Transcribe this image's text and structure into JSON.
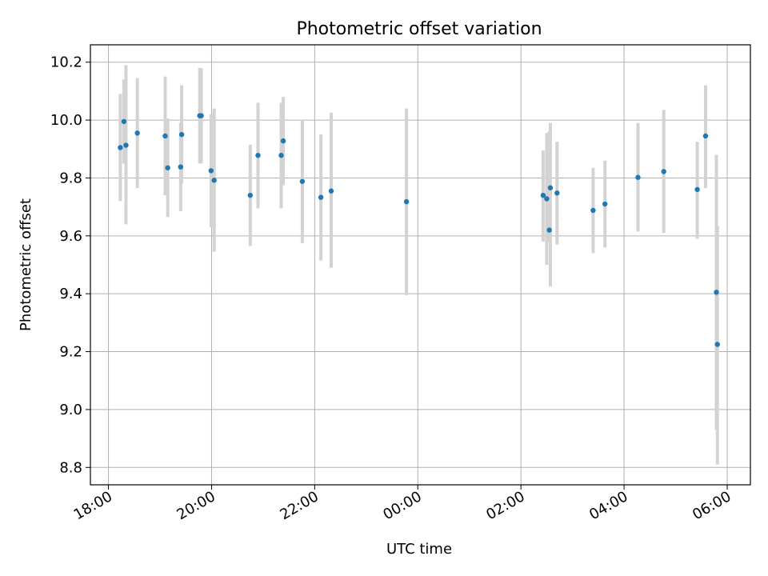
{
  "chart_data": {
    "type": "scatter",
    "title": "Photometric offset variation",
    "xlabel": "UTC time",
    "ylabel": "Photometric offset",
    "grid": true,
    "x_unit": "hours since 18:00 UTC",
    "xlim": [
      -0.35,
      12.45
    ],
    "ylim": [
      8.74,
      10.26
    ],
    "xticks": [
      {
        "value": 0,
        "label": "18:00"
      },
      {
        "value": 2,
        "label": "20:00"
      },
      {
        "value": 4,
        "label": "22:00"
      },
      {
        "value": 6,
        "label": "00:00"
      },
      {
        "value": 8,
        "label": "02:00"
      },
      {
        "value": 10,
        "label": "04:00"
      },
      {
        "value": 12,
        "label": "06:00"
      }
    ],
    "yticks": [
      {
        "value": 8.8,
        "label": "8.8"
      },
      {
        "value": 9.0,
        "label": "9.0"
      },
      {
        "value": 9.2,
        "label": "9.2"
      },
      {
        "value": 9.4,
        "label": "9.4"
      },
      {
        "value": 9.6,
        "label": "9.6"
      },
      {
        "value": 9.8,
        "label": "9.8"
      },
      {
        "value": 10.0,
        "label": "10.0"
      },
      {
        "value": 10.2,
        "label": "10.2"
      }
    ],
    "series": [
      {
        "name": "offset",
        "marker_color": "#1f77b4",
        "errorbar_color": "#d3d3d3",
        "points": [
          {
            "x": 0.23,
            "y": 9.905,
            "lo": 9.72,
            "hi": 10.09
          },
          {
            "x": 0.3,
            "y": 9.995,
            "lo": 9.85,
            "hi": 10.14
          },
          {
            "x": 0.34,
            "y": 9.913,
            "lo": 9.64,
            "hi": 10.19
          },
          {
            "x": 0.56,
            "y": 9.955,
            "lo": 9.765,
            "hi": 10.145
          },
          {
            "x": 1.1,
            "y": 9.945,
            "lo": 9.74,
            "hi": 10.15
          },
          {
            "x": 1.15,
            "y": 9.835,
            "lo": 9.665,
            "hi": 10.005
          },
          {
            "x": 1.4,
            "y": 9.838,
            "lo": 9.685,
            "hi": 9.99
          },
          {
            "x": 1.42,
            "y": 9.95,
            "lo": 9.78,
            "hi": 10.12
          },
          {
            "x": 1.77,
            "y": 10.015,
            "lo": 9.85,
            "hi": 10.18
          },
          {
            "x": 1.8,
            "y": 10.015,
            "lo": 9.85,
            "hi": 10.18
          },
          {
            "x": 1.99,
            "y": 9.825,
            "lo": 9.63,
            "hi": 10.02
          },
          {
            "x": 2.05,
            "y": 9.792,
            "lo": 9.545,
            "hi": 10.04
          },
          {
            "x": 2.75,
            "y": 9.74,
            "lo": 9.565,
            "hi": 9.915
          },
          {
            "x": 2.9,
            "y": 9.878,
            "lo": 9.695,
            "hi": 10.06
          },
          {
            "x": 3.35,
            "y": 9.878,
            "lo": 9.695,
            "hi": 10.06
          },
          {
            "x": 3.39,
            "y": 9.928,
            "lo": 9.775,
            "hi": 10.08
          },
          {
            "x": 3.76,
            "y": 9.788,
            "lo": 9.575,
            "hi": 10.0
          },
          {
            "x": 4.12,
            "y": 9.733,
            "lo": 9.515,
            "hi": 9.95
          },
          {
            "x": 4.32,
            "y": 9.755,
            "lo": 9.49,
            "hi": 10.025
          },
          {
            "x": 5.78,
            "y": 9.718,
            "lo": 9.395,
            "hi": 10.04
          },
          {
            "x": 8.43,
            "y": 9.74,
            "lo": 9.58,
            "hi": 9.895
          },
          {
            "x": 8.5,
            "y": 9.728,
            "lo": 9.5,
            "hi": 9.955
          },
          {
            "x": 8.55,
            "y": 9.62,
            "lo": 9.58,
            "hi": 9.96
          },
          {
            "x": 8.57,
            "y": 9.766,
            "lo": 9.425,
            "hi": 9.99
          },
          {
            "x": 8.7,
            "y": 9.748,
            "lo": 9.57,
            "hi": 9.925
          },
          {
            "x": 9.4,
            "y": 9.688,
            "lo": 9.54,
            "hi": 9.835
          },
          {
            "x": 9.63,
            "y": 9.71,
            "lo": 9.56,
            "hi": 9.86
          },
          {
            "x": 10.27,
            "y": 9.802,
            "lo": 9.615,
            "hi": 9.99
          },
          {
            "x": 10.77,
            "y": 9.822,
            "lo": 9.61,
            "hi": 10.035
          },
          {
            "x": 11.42,
            "y": 9.76,
            "lo": 9.59,
            "hi": 9.925
          },
          {
            "x": 11.58,
            "y": 9.945,
            "lo": 9.765,
            "hi": 10.12
          },
          {
            "x": 11.79,
            "y": 9.405,
            "lo": 8.93,
            "hi": 9.88
          },
          {
            "x": 11.81,
            "y": 9.225,
            "lo": 8.81,
            "hi": 9.635
          }
        ]
      }
    ]
  }
}
